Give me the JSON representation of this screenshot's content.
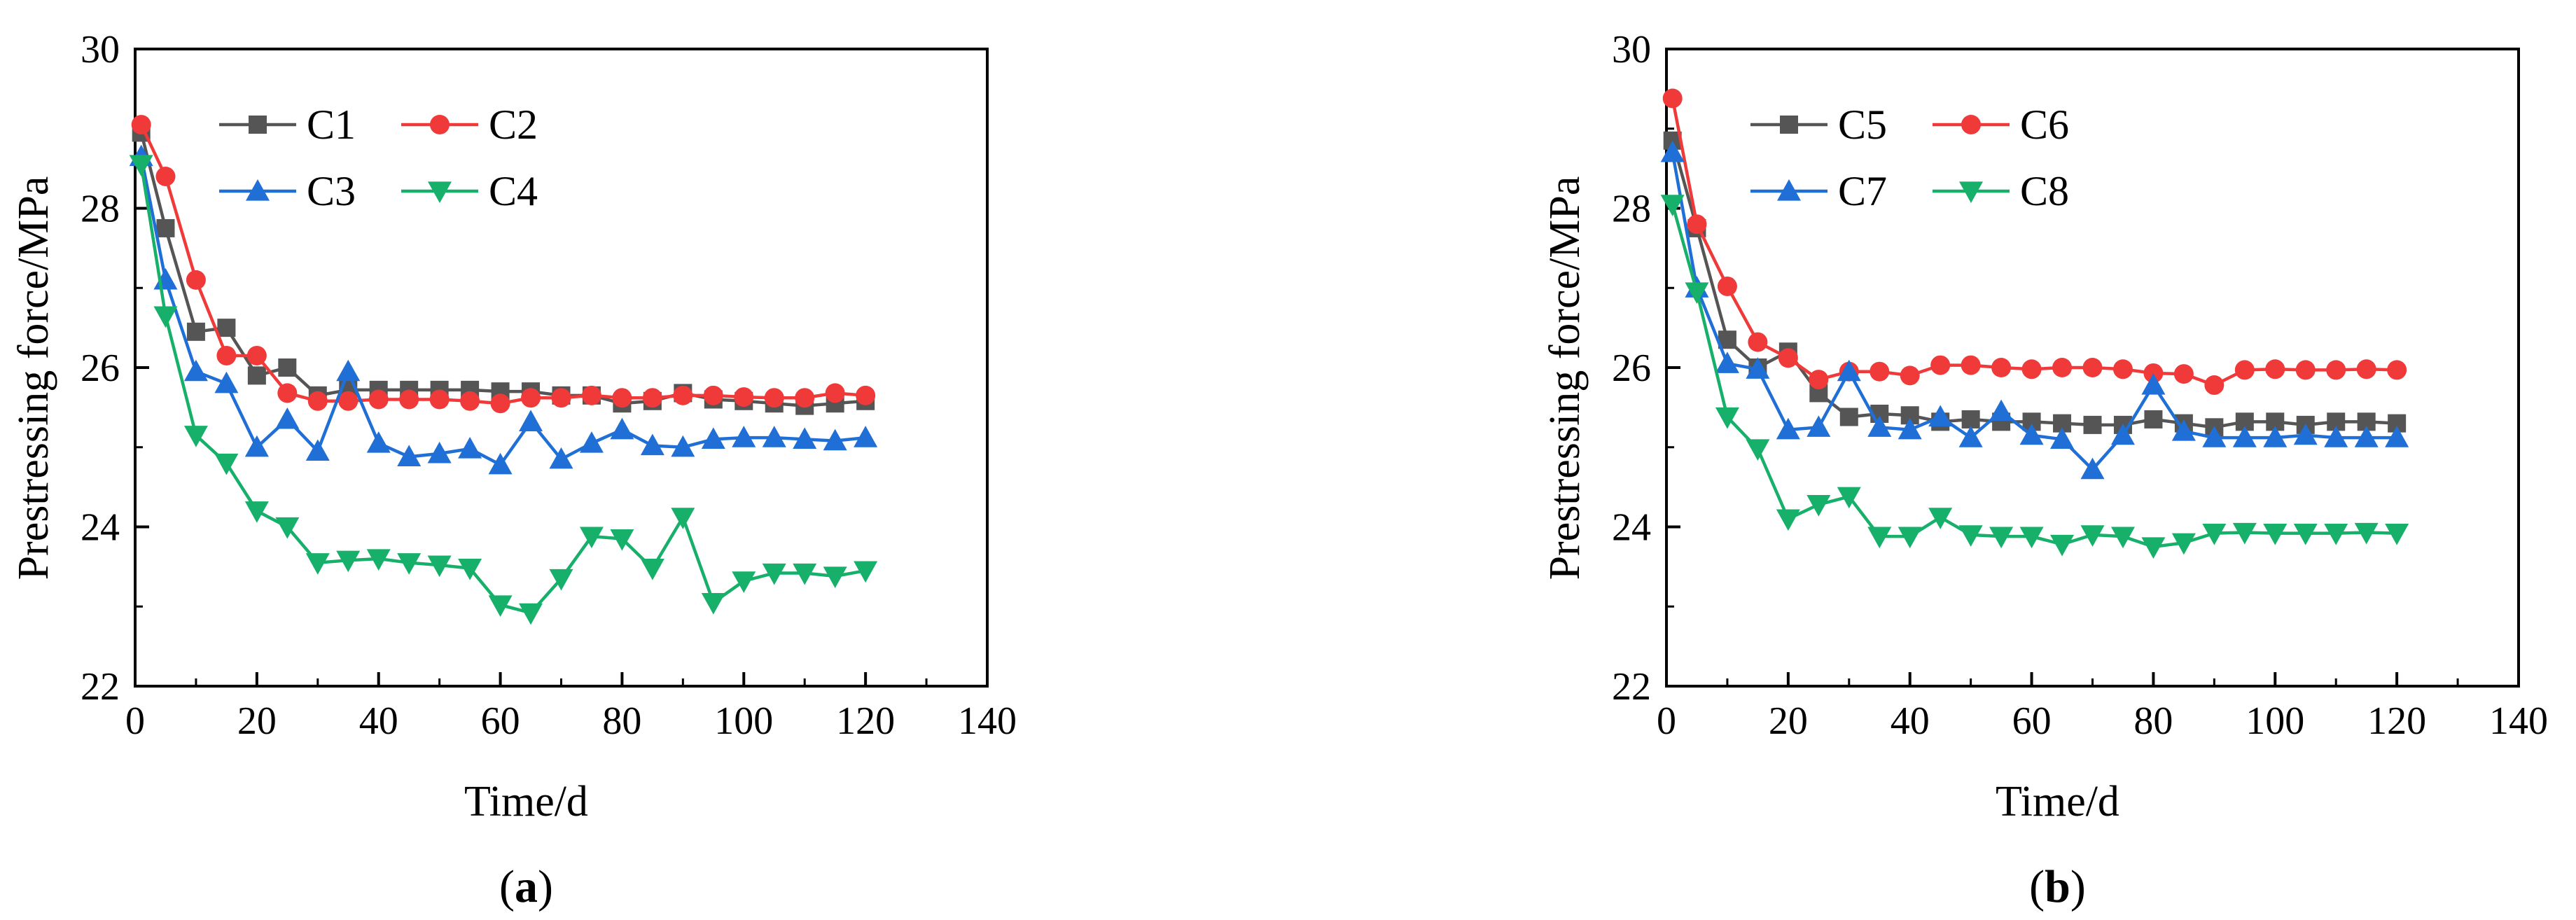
{
  "chart_data": [
    {
      "type": "line",
      "panel_label": "(a)",
      "panel_letter": "a",
      "xlabel": "Time/d",
      "ylabel": "Prestressing force/MPa",
      "xlim": [
        0,
        140
      ],
      "ylim": [
        22,
        30
      ],
      "xticks": [
        0,
        20,
        40,
        60,
        80,
        100,
        120,
        140
      ],
      "yticks": [
        22,
        24,
        26,
        28,
        30
      ],
      "legend_position": "top-left",
      "x": [
        1,
        5,
        10,
        15,
        20,
        25,
        30,
        35,
        40,
        45,
        50,
        55,
        60,
        65,
        70,
        75,
        80,
        85,
        90,
        95,
        100,
        105,
        110,
        115,
        120
      ],
      "series": [
        {
          "name": "C1",
          "color": "#555555",
          "marker": "square",
          "values": [
            28.95,
            27.75,
            26.45,
            26.5,
            25.9,
            26.0,
            25.65,
            25.72,
            25.72,
            25.72,
            25.72,
            25.72,
            25.7,
            25.7,
            25.65,
            25.65,
            25.55,
            25.58,
            25.68,
            25.6,
            25.58,
            25.55,
            25.52,
            25.55,
            25.58
          ]
        },
        {
          "name": "C2",
          "color": "#f03a3a",
          "marker": "circle",
          "values": [
            29.05,
            28.4,
            27.1,
            26.15,
            26.15,
            25.68,
            25.58,
            25.58,
            25.6,
            25.6,
            25.6,
            25.58,
            25.55,
            25.62,
            25.62,
            25.65,
            25.62,
            25.62,
            25.65,
            25.65,
            25.63,
            25.62,
            25.62,
            25.68,
            25.65
          ]
        },
        {
          "name": "C3",
          "color": "#1f6fd6",
          "marker": "triangle-up",
          "values": [
            28.65,
            27.1,
            25.95,
            25.8,
            25.0,
            25.35,
            24.95,
            25.95,
            25.05,
            24.88,
            24.92,
            24.98,
            24.78,
            25.32,
            24.85,
            25.05,
            25.22,
            25.02,
            25.0,
            25.1,
            25.12,
            25.12,
            25.1,
            25.08,
            25.12
          ]
        },
        {
          "name": "C4",
          "color": "#16b06a",
          "marker": "triangle-down",
          "values": [
            28.55,
            26.65,
            25.15,
            24.8,
            24.2,
            24.0,
            23.55,
            23.58,
            23.6,
            23.55,
            23.52,
            23.48,
            23.02,
            22.92,
            23.35,
            23.88,
            23.85,
            23.48,
            24.12,
            23.05,
            23.32,
            23.42,
            23.42,
            23.38,
            23.45
          ]
        }
      ]
    },
    {
      "type": "line",
      "panel_label": "(b)",
      "panel_letter": "b",
      "xlabel": "Time/d",
      "ylabel": "Prestressing force/MPa",
      "xlim": [
        0,
        140
      ],
      "ylim": [
        22,
        30
      ],
      "xticks": [
        0,
        20,
        40,
        60,
        80,
        100,
        120,
        140
      ],
      "yticks": [
        22,
        24,
        26,
        28,
        30
      ],
      "legend_position": "top-left",
      "x": [
        1,
        5,
        10,
        15,
        20,
        25,
        30,
        35,
        40,
        45,
        50,
        55,
        60,
        65,
        70,
        75,
        80,
        85,
        90,
        95,
        100,
        105,
        110,
        115,
        120
      ],
      "series": [
        {
          "name": "C5",
          "color": "#555555",
          "marker": "square",
          "values": [
            28.85,
            27.75,
            26.35,
            26.0,
            26.2,
            25.68,
            25.38,
            25.42,
            25.4,
            25.32,
            25.35,
            25.32,
            25.32,
            25.3,
            25.28,
            25.28,
            25.35,
            25.3,
            25.25,
            25.32,
            25.32,
            25.28,
            25.32,
            25.32,
            25.3
          ]
        },
        {
          "name": "C6",
          "color": "#f03a3a",
          "marker": "circle",
          "values": [
            29.38,
            27.8,
            27.02,
            26.32,
            26.12,
            25.85,
            25.95,
            25.95,
            25.9,
            26.03,
            26.03,
            26.0,
            25.98,
            26.0,
            26.0,
            25.98,
            25.93,
            25.92,
            25.78,
            25.97,
            25.98,
            25.97,
            25.97,
            25.98,
            25.97
          ]
        },
        {
          "name": "C7",
          "color": "#1f6fd6",
          "marker": "triangle-up",
          "values": [
            28.7,
            27.0,
            26.05,
            25.98,
            25.22,
            25.25,
            25.95,
            25.25,
            25.22,
            25.38,
            25.12,
            25.45,
            25.15,
            25.1,
            24.72,
            25.15,
            25.78,
            25.2,
            25.12,
            25.12,
            25.12,
            25.15,
            25.12,
            25.12,
            25.12
          ]
        },
        {
          "name": "C8",
          "color": "#16b06a",
          "marker": "triangle-down",
          "values": [
            28.05,
            26.95,
            25.38,
            24.98,
            24.1,
            24.28,
            24.38,
            23.88,
            23.88,
            24.12,
            23.9,
            23.88,
            23.88,
            23.78,
            23.9,
            23.88,
            23.75,
            23.8,
            23.92,
            23.93,
            23.92,
            23.92,
            23.92,
            23.93,
            23.92
          ]
        }
      ]
    }
  ]
}
